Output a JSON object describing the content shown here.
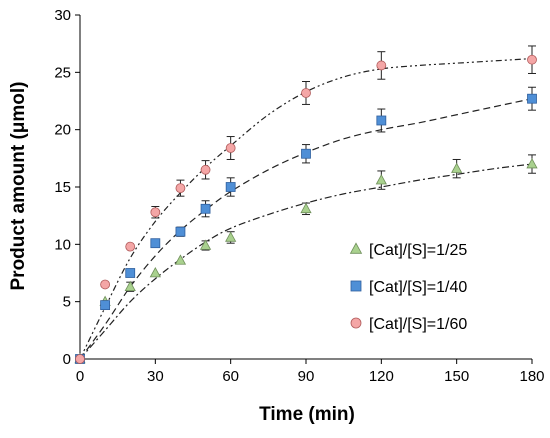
{
  "chart_data": {
    "type": "scatter",
    "xlabel": "Time (min)",
    "ylabel": "Product amount (μmol)",
    "xlim": [
      0,
      180
    ],
    "ylim": [
      0,
      30
    ],
    "x_ticks": [
      "0",
      "30",
      "60",
      "90",
      "120",
      "150",
      "180"
    ],
    "y_ticks": [
      "0",
      "5",
      "10",
      "15",
      "20",
      "25",
      "30"
    ],
    "grid": false,
    "legend_position": "center-right",
    "series": [
      {
        "name": "[Cat]/[S]=1/25",
        "marker": "triangle",
        "color": "#a9d18e",
        "edge_color": "#6f8f5a",
        "line_style": "dash-dot",
        "x": [
          0,
          10,
          20,
          30,
          40,
          50,
          60,
          90,
          120,
          150,
          180
        ],
        "y": [
          0,
          5.0,
          6.3,
          7.5,
          8.6,
          9.9,
          10.6,
          13.1,
          15.6,
          16.6,
          17.0
        ],
        "err": [
          0,
          0,
          0.4,
          0,
          0,
          0.4,
          0.5,
          0.5,
          0.8,
          0.8,
          0.8
        ],
        "fit": [
          [
            0,
            0
          ],
          [
            10,
            2.5
          ],
          [
            20,
            5.0
          ],
          [
            30,
            7.0
          ],
          [
            40,
            8.7
          ],
          [
            50,
            10.2
          ],
          [
            60,
            11.4
          ],
          [
            75,
            12.6
          ],
          [
            90,
            13.6
          ],
          [
            105,
            14.4
          ],
          [
            120,
            15.0
          ],
          [
            135,
            15.6
          ],
          [
            150,
            16.1
          ],
          [
            165,
            16.6
          ],
          [
            180,
            17.0
          ]
        ]
      },
      {
        "name": "[Cat]/[S]=1/40",
        "marker": "square",
        "color": "#4f8fd6",
        "edge_color": "#2f5f9e",
        "line_style": "dash",
        "x": [
          0,
          10,
          20,
          30,
          40,
          50,
          60,
          90,
          120,
          180
        ],
        "y": [
          0,
          4.7,
          7.5,
          10.1,
          11.1,
          13.1,
          15.0,
          17.9,
          20.8,
          22.7
        ],
        "err": [
          0,
          0,
          0,
          0,
          0.4,
          0.7,
          0.8,
          0.8,
          1.0,
          1.0
        ],
        "fit": [
          [
            0,
            0
          ],
          [
            10,
            3.0
          ],
          [
            20,
            6.3
          ],
          [
            30,
            9.0
          ],
          [
            40,
            11.2
          ],
          [
            50,
            13.0
          ],
          [
            60,
            14.6
          ],
          [
            75,
            16.5
          ],
          [
            90,
            18.0
          ],
          [
            105,
            19.2
          ],
          [
            120,
            20.0
          ],
          [
            135,
            20.6
          ],
          [
            150,
            21.3
          ],
          [
            165,
            22.0
          ],
          [
            180,
            22.7
          ]
        ]
      },
      {
        "name": "[Cat]/[S]=1/60",
        "marker": "circle",
        "color": "#f4a6a6",
        "edge_color": "#b05a5a",
        "line_style": "dash-dot-dot",
        "x": [
          0,
          10,
          20,
          30,
          40,
          50,
          60,
          90,
          120,
          180
        ],
        "y": [
          0,
          6.5,
          9.8,
          12.8,
          14.9,
          16.5,
          18.4,
          23.2,
          25.6,
          26.1
        ],
        "err": [
          0,
          0,
          0,
          0.5,
          0.7,
          0.8,
          1.0,
          1.0,
          1.2,
          1.2
        ],
        "fit": [
          [
            0,
            0
          ],
          [
            10,
            4.5
          ],
          [
            20,
            8.8
          ],
          [
            30,
            12.0
          ],
          [
            40,
            14.5
          ],
          [
            50,
            16.7
          ],
          [
            60,
            18.6
          ],
          [
            75,
            21.3
          ],
          [
            90,
            23.3
          ],
          [
            105,
            24.6
          ],
          [
            120,
            25.3
          ],
          [
            135,
            25.6
          ],
          [
            150,
            25.8
          ],
          [
            165,
            26.0
          ],
          [
            180,
            26.2
          ]
        ]
      }
    ]
  }
}
